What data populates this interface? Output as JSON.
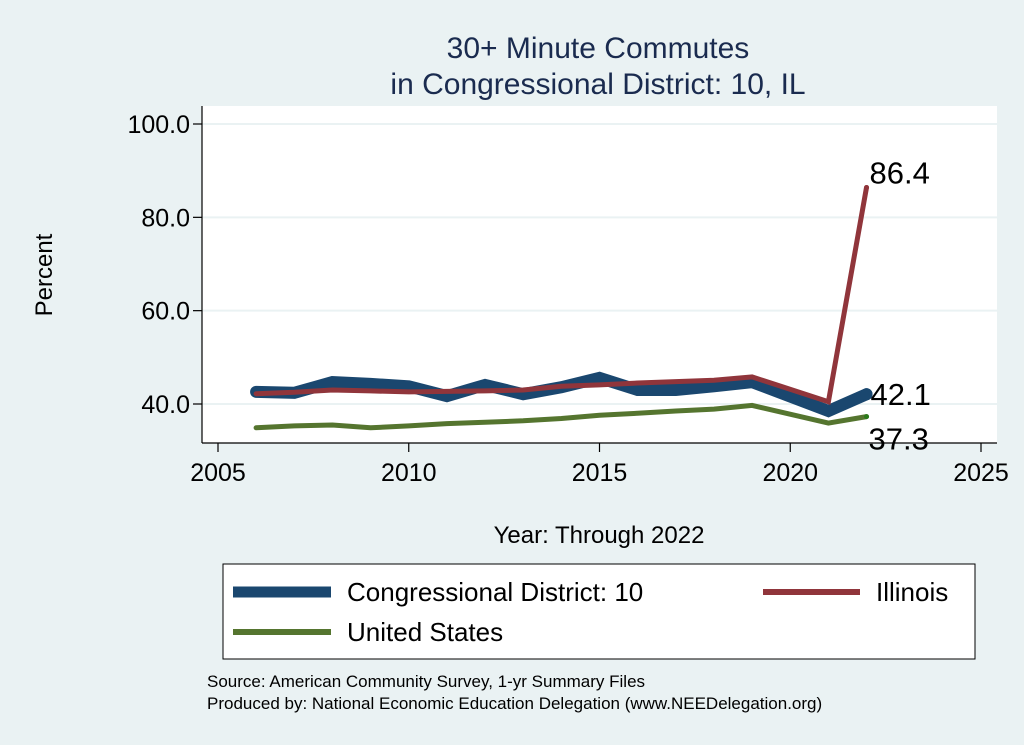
{
  "chart_data": {
    "type": "line",
    "title": [
      "30+ Minute Commutes",
      "in Congressional District:  10, IL"
    ],
    "xlabel": "Year: Through 2022",
    "ylabel": "Percent",
    "xlim": [
      2005,
      2025
    ],
    "ylim": [
      32.5,
      102.5
    ],
    "xticks": [
      2005,
      2010,
      2015,
      2020,
      2025
    ],
    "xtick_labels": [
      "2005",
      "2010",
      "2015",
      "2020",
      "2025"
    ],
    "yticks": [
      40,
      60,
      80,
      100
    ],
    "ytick_labels": [
      "40.0",
      "60.0",
      "80.0",
      "100.0"
    ],
    "grid": "horizontal",
    "x": [
      2006,
      2007,
      2008,
      2009,
      2010,
      2011,
      2012,
      2013,
      2014,
      2015,
      2016,
      2017,
      2018,
      2019,
      2021,
      2022
    ],
    "series": [
      {
        "name": "Congressional District:  10",
        "color": "#1a476f",
        "values": [
          42.6,
          42.4,
          44.7,
          44.3,
          43.8,
          41.7,
          44.1,
          42.1,
          43.6,
          45.6,
          43.0,
          43.0,
          43.8,
          44.7,
          38.5,
          42.1
        ],
        "end_label": "42.1"
      },
      {
        "name": "Illinois",
        "color": "#90353b",
        "values": [
          42.2,
          42.5,
          43.0,
          42.8,
          42.6,
          42.7,
          42.8,
          43.0,
          43.8,
          44.1,
          44.5,
          44.8,
          45.1,
          45.8,
          40.5,
          86.4
        ],
        "end_label": "86.4"
      },
      {
        "name": "United States",
        "color": "#55752f",
        "values": [
          34.9,
          35.3,
          35.5,
          34.9,
          35.3,
          35.8,
          36.1,
          36.4,
          36.9,
          37.6,
          38.0,
          38.5,
          38.9,
          39.7,
          35.9,
          37.3
        ],
        "end_label": "37.3"
      }
    ],
    "legend": {
      "position": "bottom",
      "entries": [
        "Congressional District:  10",
        "Illinois",
        "United States"
      ]
    },
    "notes": [
      "Source: American Community Survey, 1-yr Summary Files",
      "Produced by: National Economic Education Delegation (www.NEEDelegation.org)"
    ]
  }
}
